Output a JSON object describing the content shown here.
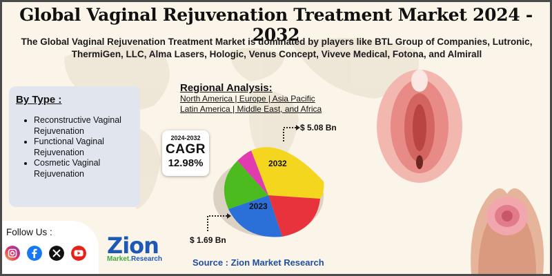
{
  "title": "Global Vaginal Rejuvenation Treatment Market 2024 - 2032",
  "subtitle": "The Global Vaginal Rejuvenation Treatment Market is dominated by players like BTL Group of Companies, Lutronic, ThermiGen, LLC, Alma Lasers, Hologic, Venus Concept, Viveve Medical, Fotona, and Almirall",
  "by_type": {
    "heading": "By Type :",
    "items": [
      "Reconstructive Vaginal Rejuvenation",
      "Functional Vaginal Rejuvenation",
      "Cosmetic Vaginal Rejuvenation"
    ]
  },
  "regional": {
    "heading": "Regional Analysis:",
    "line1": "North America | Europe | Asia Pacific",
    "line2": "Latin America | Middle East, and Africa"
  },
  "cagr": {
    "years": "2024-2032",
    "label": "CAGR",
    "value": "12.98%"
  },
  "market": {
    "value_2032": "$ 5.08  Bn",
    "value_2023": "$ 1.69 Bn",
    "label_2032": "2032",
    "label_2023": "2023"
  },
  "follow": {
    "label": "Follow Us :",
    "icons": [
      "instagram-icon",
      "facebook-icon",
      "x-icon",
      "youtube-icon"
    ]
  },
  "logo": {
    "name": "Zion",
    "sub_left": "Market.",
    "sub_right": "Research"
  },
  "source": "Source : Zion Market Research",
  "colors": {
    "brand_blue": "#1e58b5",
    "pie_yellow": "#f2d21b",
    "pie_red": "#e8323c",
    "pie_blue": "#2b6fd9",
    "pie_green": "#4cbb1f",
    "pie_pink": "#e23bb0"
  }
}
